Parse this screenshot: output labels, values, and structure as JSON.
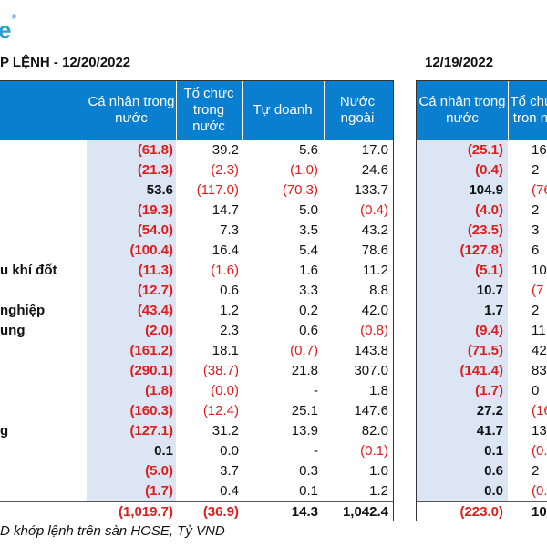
{
  "logo": {
    "text": "e",
    "mark": "®"
  },
  "title_left": "P LỆNH - 12/20/2022",
  "title_right": "12/19/2022",
  "headers_left": [
    "Cá nhân trong nước",
    "Tổ chức trong nước",
    "Tự doanh",
    "Nước ngoài"
  ],
  "headers_right": [
    "Cá nhân trong nước",
    "Tổ chức tron nư"
  ],
  "rows": [
    {
      "label": "",
      "l": [
        "(61.8)",
        "39.2",
        "5.6",
        "17.0"
      ],
      "r": [
        "(25.1)",
        "16"
      ]
    },
    {
      "label": "",
      "l": [
        "(21.3)",
        "(2.3)",
        "(1.0)",
        "24.6"
      ],
      "r": [
        "(0.4)",
        "2"
      ]
    },
    {
      "label": "",
      "l": [
        "53.6",
        "(117.0)",
        "(70.3)",
        "133.7"
      ],
      "r": [
        "104.9",
        "(76"
      ]
    },
    {
      "label": "",
      "l": [
        "(19.3)",
        "14.7",
        "5.0",
        "(0.4)"
      ],
      "r": [
        "(4.0)",
        "2"
      ]
    },
    {
      "label": "",
      "l": [
        "(54.0)",
        "7.3",
        "3.5",
        "43.2"
      ],
      "r": [
        "(23.5)",
        "3"
      ]
    },
    {
      "label": "",
      "l": [
        "(100.4)",
        "16.4",
        "5.4",
        "78.6"
      ],
      "r": [
        "(127.8)",
        "6"
      ]
    },
    {
      "label": "u khí đốt",
      "l": [
        "(11.3)",
        "(1.6)",
        "1.6",
        "11.2"
      ],
      "r": [
        "(5.1)",
        "10"
      ]
    },
    {
      "label": "",
      "l": [
        "(12.7)",
        "0.6",
        "3.3",
        "8.8"
      ],
      "r": [
        "10.7",
        "(7"
      ]
    },
    {
      "label": "nghiệp",
      "l": [
        "(43.4)",
        "1.2",
        "0.2",
        "42.0"
      ],
      "r": [
        "1.7",
        "2"
      ]
    },
    {
      "label": "ung",
      "l": [
        "(2.0)",
        "2.3",
        "0.6",
        "(0.8)"
      ],
      "r": [
        "(9.4)",
        "11"
      ]
    },
    {
      "label": "",
      "l": [
        "(161.2)",
        "18.1",
        "(0.7)",
        "143.8"
      ],
      "r": [
        "(71.5)",
        "42"
      ]
    },
    {
      "label": "",
      "l": [
        "(290.1)",
        "(38.7)",
        "21.8",
        "307.0"
      ],
      "r": [
        "(141.4)",
        "83"
      ]
    },
    {
      "label": "",
      "l": [
        "(1.8)",
        "(0.0)",
        "-",
        "1.8"
      ],
      "r": [
        "(1.7)",
        "0"
      ]
    },
    {
      "label": "",
      "l": [
        "(160.3)",
        "(12.4)",
        "25.1",
        "147.6"
      ],
      "r": [
        "27.2",
        "(16"
      ]
    },
    {
      "label": "g",
      "l": [
        "(127.1)",
        "31.2",
        "13.9",
        "82.0"
      ],
      "r": [
        "41.7",
        "13"
      ]
    },
    {
      "label": "",
      "l": [
        "0.1",
        "0.0",
        "-",
        "(0.1)"
      ],
      "r": [
        "0.1",
        "(0."
      ]
    },
    {
      "label": "",
      "l": [
        "(5.0)",
        "3.7",
        "0.3",
        "1.0"
      ],
      "r": [
        "0.6",
        "2"
      ]
    },
    {
      "label": "",
      "l": [
        "(1.7)",
        "0.4",
        "0.1",
        "1.2"
      ],
      "r": [
        "0.0",
        "(0."
      ]
    }
  ],
  "total": {
    "l": [
      "(1,019.7)",
      "(36.9)",
      "14.3",
      "1,042.4"
    ],
    "r": [
      "(223.0)",
      "105"
    ]
  },
  "footnote": "D khớp lệnh trên sàn HOSE, Tỷ VND",
  "colors": {
    "header_bg": "#0a7fd0",
    "shade": "#dbe5f3",
    "negative": "#e01c1c",
    "logo": "#2a9fd6"
  }
}
